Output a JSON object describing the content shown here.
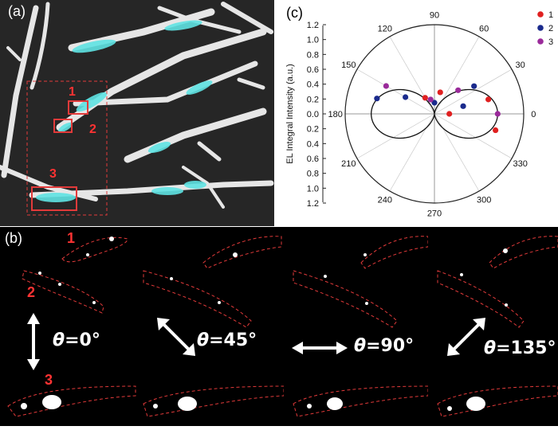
{
  "panel_a": {
    "label": "(a)",
    "markers": [
      "1",
      "2",
      "3"
    ]
  },
  "panel_b": {
    "label": "(b)",
    "fiber_labels": [
      "1",
      "2",
      "3"
    ],
    "frames": [
      {
        "theta_symbol": "θ",
        "theta_value": "=0°"
      },
      {
        "theta_symbol": "θ",
        "theta_value": "=45°"
      },
      {
        "theta_symbol": "θ",
        "theta_value": "=90°"
      },
      {
        "theta_symbol": "θ",
        "theta_value": "=135°"
      }
    ]
  },
  "panel_c": {
    "label": "(c)"
  },
  "chart_data": {
    "type": "scatter",
    "coordinate_system": "polar",
    "ylabel": "EL Integral Intensity (a.u.)",
    "radial_ticks_upper": [
      "1.2",
      "1.0",
      "0.8",
      "0.6",
      "0.4",
      "0.2",
      "0.0"
    ],
    "radial_ticks_lower": [
      "0.2",
      "0.4",
      "0.6",
      "0.8",
      "1.0",
      "1.2"
    ],
    "radial_range": [
      0,
      1.2
    ],
    "angle_ticks": [
      "0",
      "30",
      "60",
      "90",
      "120",
      "150",
      "180",
      "210",
      "240",
      "270",
      "300",
      "330"
    ],
    "legend": [
      "1",
      "2",
      "3"
    ],
    "colors": {
      "1": "#e02020",
      "2": "#1a2a8c",
      "3": "#9a2a9a",
      "fit": "#111111"
    },
    "series": [
      {
        "name": "1",
        "points": [
          {
            "angle": 0,
            "r": 0.2
          },
          {
            "angle": 15,
            "r": 0.75
          },
          {
            "angle": 75,
            "r": 0.3
          },
          {
            "angle": 120,
            "r": 0.25
          },
          {
            "angle": 345,
            "r": 0.85
          }
        ]
      },
      {
        "name": "2",
        "points": [
          {
            "angle": 15,
            "r": 0.4
          },
          {
            "angle": 35,
            "r": 0.65
          },
          {
            "angle": 90,
            "r": 0.15
          },
          {
            "angle": 165,
            "r": 0.8
          },
          {
            "angle": 150,
            "r": 0.45
          }
        ]
      },
      {
        "name": "3",
        "points": [
          {
            "angle": 0,
            "r": 0.85
          },
          {
            "angle": 45,
            "r": 0.45
          },
          {
            "angle": 105,
            "r": 0.2
          },
          {
            "angle": 150,
            "r": 0.75
          }
        ]
      }
    ],
    "fit_curve": {
      "model": "r = 0.85 * cos^2(theta)"
    }
  }
}
